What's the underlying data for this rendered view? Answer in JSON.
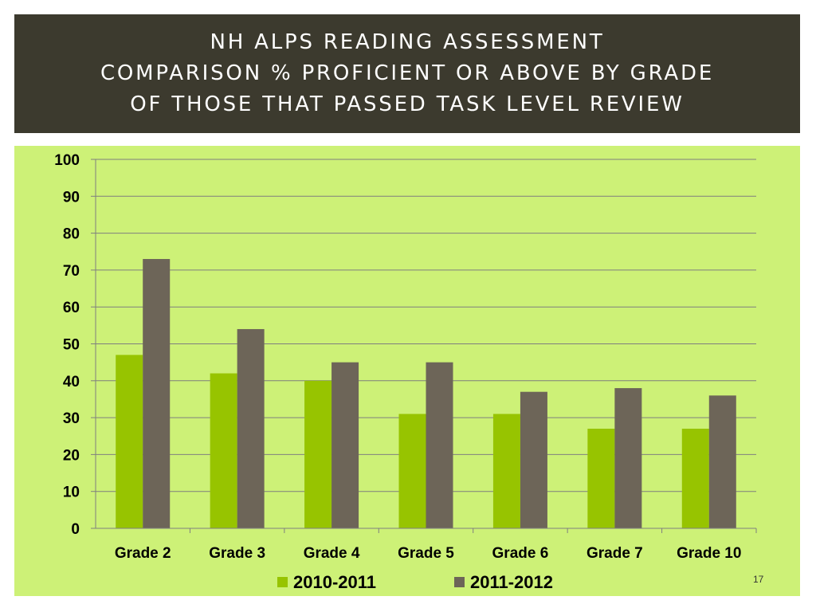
{
  "slide": {
    "title_lines": [
      "NH ALPS READING ASSESSMENT",
      "COMPARISON % PROFICIENT OR ABOVE BY GRADE",
      "OF THOSE THAT PASSED TASK LEVEL REVIEW"
    ],
    "page_number": "17",
    "colors": {
      "title_band": "#3c3a2e",
      "chart_background": "#cdf177"
    }
  },
  "chart_data": {
    "type": "bar",
    "categories": [
      "Grade 2",
      "Grade 3",
      "Grade 4",
      "Grade 5",
      "Grade 6",
      "Grade 7",
      "Grade 10"
    ],
    "series": [
      {
        "name": "2010-2011",
        "color": "#97c400",
        "values": [
          47,
          42,
          40,
          31,
          31,
          27,
          27
        ]
      },
      {
        "name": "2011-2012",
        "color": "#6d6558",
        "values": [
          73,
          54,
          45,
          45,
          37,
          38,
          36
        ]
      }
    ],
    "ylim": [
      0,
      100
    ],
    "yticks": [
      0,
      10,
      20,
      30,
      40,
      50,
      60,
      70,
      80,
      90,
      100
    ],
    "grid": true,
    "legend_position": "bottom",
    "title": "",
    "xlabel": "",
    "ylabel": ""
  }
}
